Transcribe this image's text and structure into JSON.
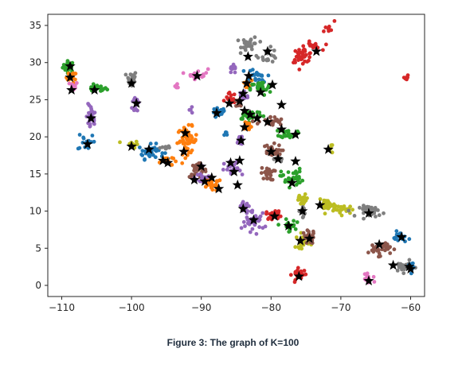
{
  "caption": "Figure 3: The graph of K=100",
  "chart_data": {
    "type": "scatter",
    "title": "",
    "xlabel": "",
    "ylabel": "",
    "xlim": [
      -112,
      -58
    ],
    "ylim": [
      -1.5,
      36.5
    ],
    "xticks": [
      -110,
      -100,
      -90,
      -80,
      -70,
      -60
    ],
    "xtick_labels": [
      "−110",
      "−100",
      "−90",
      "−80",
      "−70",
      "−60"
    ],
    "yticks": [
      0,
      5,
      10,
      15,
      20,
      25,
      30,
      35
    ],
    "ytick_labels": [
      "0",
      "5",
      "10",
      "15",
      "20",
      "25",
      "30",
      "35"
    ],
    "grid": false,
    "legend": "none",
    "colors": {
      "blue": "#1f77b4",
      "orange": "#ff7f0e",
      "green": "#2ca02c",
      "red": "#d62728",
      "purple": "#9467bd",
      "brown": "#8c564b",
      "pink": "#e377c2",
      "gray": "#7f7f7f",
      "olive": "#bcbd22",
      "cyan": "#17becf",
      "centroid": "#000000",
      "axis": "#262626"
    },
    "clusters": [
      {
        "color": "green",
        "x": -109,
        "y": 29.5,
        "sx": 0.7,
        "sy": 0.6,
        "n": 30
      },
      {
        "color": "orange",
        "x": -108.6,
        "y": 28,
        "sx": 0.6,
        "sy": 0.6,
        "n": 20
      },
      {
        "color": "pink",
        "x": -108.3,
        "y": 26.8,
        "sx": 0.5,
        "sy": 0.5,
        "n": 10
      },
      {
        "color": "green",
        "x": -105,
        "y": 26.5,
        "sx": 1.2,
        "sy": 0.4,
        "n": 20
      },
      {
        "color": "purple",
        "x": -105.8,
        "y": 22.5,
        "sx": 0.6,
        "sy": 1.5,
        "n": 25
      },
      {
        "color": "blue",
        "x": -106.5,
        "y": 19.5,
        "sx": 1.0,
        "sy": 1.2,
        "n": 15
      },
      {
        "color": "gray",
        "x": -100,
        "y": 27.8,
        "sx": 0.6,
        "sy": 0.9,
        "n": 25
      },
      {
        "color": "purple",
        "x": -99.3,
        "y": 24.5,
        "sx": 0.5,
        "sy": 1.2,
        "n": 20
      },
      {
        "color": "olive",
        "x": -100,
        "y": 19,
        "sx": 0.8,
        "sy": 0.4,
        "n": 15
      },
      {
        "color": "blue",
        "x": -97.2,
        "y": 18,
        "sx": 1.5,
        "sy": 0.8,
        "n": 35
      },
      {
        "color": "orange",
        "x": -95,
        "y": 16.8,
        "sx": 0.8,
        "sy": 0.6,
        "n": 15
      },
      {
        "color": "pink",
        "x": -93.5,
        "y": 26.8,
        "sx": 0.5,
        "sy": 0.3,
        "n": 6
      },
      {
        "color": "pink",
        "x": -90.5,
        "y": 28.5,
        "sx": 1.2,
        "sy": 0.6,
        "n": 18
      },
      {
        "color": "orange",
        "x": -92,
        "y": 19.5,
        "sx": 1.2,
        "sy": 1.5,
        "n": 55
      },
      {
        "color": "brown",
        "x": -90.5,
        "y": 15.5,
        "sx": 1.0,
        "sy": 0.8,
        "n": 30
      },
      {
        "color": "purple",
        "x": -89.5,
        "y": 14.5,
        "sx": 1.2,
        "sy": 0.8,
        "n": 30
      },
      {
        "color": "orange",
        "x": -88.5,
        "y": 13.5,
        "sx": 1.2,
        "sy": 0.7,
        "n": 25
      },
      {
        "color": "blue",
        "x": -87.5,
        "y": 23.2,
        "sx": 0.8,
        "sy": 0.6,
        "n": 20
      },
      {
        "color": "red",
        "x": -85.8,
        "y": 25.2,
        "sx": 0.6,
        "sy": 0.6,
        "n": 15
      },
      {
        "color": "purple",
        "x": -85.5,
        "y": 29,
        "sx": 0.6,
        "sy": 0.5,
        "n": 12
      },
      {
        "color": "gray",
        "x": -83,
        "y": 32.5,
        "sx": 1.0,
        "sy": 0.8,
        "n": 30
      },
      {
        "color": "gray",
        "x": -80.5,
        "y": 31,
        "sx": 1.2,
        "sy": 0.8,
        "n": 20
      },
      {
        "color": "red",
        "x": -75.5,
        "y": 31,
        "sx": 1.3,
        "sy": 0.8,
        "n": 35
      },
      {
        "color": "red",
        "x": -74,
        "y": 32.2,
        "sx": 1.0,
        "sy": 0.5,
        "n": 15
      },
      {
        "color": "blue",
        "x": -82.5,
        "y": 28,
        "sx": 1.5,
        "sy": 1.0,
        "n": 30
      },
      {
        "color": "orange",
        "x": -83.5,
        "y": 27,
        "sx": 0.6,
        "sy": 0.5,
        "n": 12
      },
      {
        "color": "green",
        "x": -81.5,
        "y": 26.5,
        "sx": 1.2,
        "sy": 0.8,
        "n": 25
      },
      {
        "color": "purple",
        "x": -84,
        "y": 25.5,
        "sx": 0.6,
        "sy": 0.8,
        "n": 20
      },
      {
        "color": "brown",
        "x": -84.5,
        "y": 24.5,
        "sx": 0.5,
        "sy": 0.6,
        "n": 10
      },
      {
        "color": "green",
        "x": -83,
        "y": 23,
        "sx": 1.5,
        "sy": 0.6,
        "n": 35
      },
      {
        "color": "brown",
        "x": -80,
        "y": 22,
        "sx": 1.5,
        "sy": 0.6,
        "n": 25
      },
      {
        "color": "green",
        "x": -77.5,
        "y": 20.5,
        "sx": 1.0,
        "sy": 0.5,
        "n": 25
      },
      {
        "color": "orange",
        "x": -83.5,
        "y": 21.5,
        "sx": 0.6,
        "sy": 0.6,
        "n": 15
      },
      {
        "color": "purple",
        "x": -84.5,
        "y": 19.5,
        "sx": 0.5,
        "sy": 0.8,
        "n": 15
      },
      {
        "color": "brown",
        "x": -80,
        "y": 18,
        "sx": 1.2,
        "sy": 0.8,
        "n": 25
      },
      {
        "color": "brown",
        "x": -80.5,
        "y": 15,
        "sx": 0.8,
        "sy": 0.7,
        "n": 25
      },
      {
        "color": "gray",
        "x": -79,
        "y": 17,
        "sx": 0.5,
        "sy": 0.4,
        "n": 10
      },
      {
        "color": "green",
        "x": -77,
        "y": 14.5,
        "sx": 1.3,
        "sy": 1.0,
        "n": 35
      },
      {
        "color": "olive",
        "x": -75.5,
        "y": 11.5,
        "sx": 0.8,
        "sy": 0.6,
        "n": 20
      },
      {
        "color": "purple",
        "x": -85.5,
        "y": 15.5,
        "sx": 1.0,
        "sy": 1.0,
        "n": 25
      },
      {
        "color": "purple",
        "x": -83.5,
        "y": 10.5,
        "sx": 1.0,
        "sy": 0.8,
        "n": 20
      },
      {
        "color": "purple",
        "x": -82.5,
        "y": 8.5,
        "sx": 1.3,
        "sy": 1.0,
        "n": 30
      },
      {
        "color": "red",
        "x": -79.5,
        "y": 9.5,
        "sx": 1.0,
        "sy": 0.5,
        "n": 20
      },
      {
        "color": "green",
        "x": -77.5,
        "y": 8,
        "sx": 0.8,
        "sy": 0.7,
        "n": 20
      },
      {
        "color": "gray",
        "x": -75.5,
        "y": 10,
        "sx": 0.6,
        "sy": 0.6,
        "n": 15
      },
      {
        "color": "olive",
        "x": -72,
        "y": 10.8,
        "sx": 1.0,
        "sy": 0.6,
        "n": 25
      },
      {
        "color": "olive",
        "x": -69.5,
        "y": 10.2,
        "sx": 1.2,
        "sy": 0.5,
        "n": 25
      },
      {
        "color": "gray",
        "x": -65.5,
        "y": 10,
        "sx": 1.5,
        "sy": 0.6,
        "n": 35
      },
      {
        "color": "olive",
        "x": -75.5,
        "y": 6,
        "sx": 0.8,
        "sy": 0.8,
        "n": 25
      },
      {
        "color": "brown",
        "x": -74.5,
        "y": 6.5,
        "sx": 0.8,
        "sy": 0.8,
        "n": 20
      },
      {
        "color": "red",
        "x": -76,
        "y": 1.5,
        "sx": 0.8,
        "sy": 0.6,
        "n": 30
      },
      {
        "color": "brown",
        "x": -64.5,
        "y": 5,
        "sx": 1.3,
        "sy": 0.8,
        "n": 35
      },
      {
        "color": "blue",
        "x": -61.5,
        "y": 6.5,
        "sx": 0.8,
        "sy": 0.6,
        "n": 20
      },
      {
        "color": "gray",
        "x": -61,
        "y": 2.5,
        "sx": 1.2,
        "sy": 0.6,
        "n": 25
      },
      {
        "color": "blue",
        "x": -60,
        "y": 2.8,
        "sx": 0.4,
        "sy": 0.8,
        "n": 12
      },
      {
        "color": "pink",
        "x": -66,
        "y": 0.8,
        "sx": 0.8,
        "sy": 0.5,
        "n": 12
      },
      {
        "color": "olive",
        "x": -71.5,
        "y": 18.5,
        "sx": 0.4,
        "sy": 0.4,
        "n": 6
      },
      {
        "color": "red",
        "x": -60.5,
        "y": 28,
        "sx": 0.3,
        "sy": 0.4,
        "n": 6
      },
      {
        "color": "red",
        "x": -71.5,
        "y": 34.5,
        "sx": 0.6,
        "sy": 0.8,
        "n": 8
      },
      {
        "color": "gray",
        "x": -95,
        "y": 18.5,
        "sx": 0.6,
        "sy": 0.4,
        "n": 8
      },
      {
        "color": "purple",
        "x": -91.5,
        "y": 23.5,
        "sx": 0.3,
        "sy": 0.3,
        "n": 4
      },
      {
        "color": "blue",
        "x": -86.5,
        "y": 20.5,
        "sx": 0.3,
        "sy": 0.3,
        "n": 4
      }
    ],
    "centroids": [
      [
        -108.8,
        29.5
      ],
      [
        -108.8,
        28
      ],
      [
        -108.6,
        26.3
      ],
      [
        -105.3,
        26.3
      ],
      [
        -105.8,
        22.5
      ],
      [
        -106.3,
        19
      ],
      [
        -100,
        27.2
      ],
      [
        -99.3,
        24.5
      ],
      [
        -100,
        18.7
      ],
      [
        -97.5,
        18.3
      ],
      [
        -95.5,
        16.8
      ],
      [
        -94.8,
        16.5
      ],
      [
        -92.3,
        20.5
      ],
      [
        -92.5,
        18
      ],
      [
        -90.6,
        28.2
      ],
      [
        -90,
        16
      ],
      [
        -91,
        14.2
      ],
      [
        -89.5,
        14
      ],
      [
        -88.5,
        14.5
      ],
      [
        -87.5,
        13
      ],
      [
        -87.8,
        23.2
      ],
      [
        -86,
        24.5
      ],
      [
        -85.3,
        15.3
      ],
      [
        -84.5,
        16.8
      ],
      [
        -84.8,
        13.5
      ],
      [
        -84.3,
        19.5
      ],
      [
        -83.8,
        21.3
      ],
      [
        -83.8,
        23.5
      ],
      [
        -84.5,
        24.8
      ],
      [
        -84,
        25.8
      ],
      [
        -83.5,
        27.2
      ],
      [
        -83.2,
        28.2
      ],
      [
        -83.3,
        30.8
      ],
      [
        -80.5,
        31.5
      ],
      [
        -73.5,
        31.5
      ],
      [
        -79.8,
        27
      ],
      [
        -81.5,
        26
      ],
      [
        -78.5,
        24.3
      ],
      [
        -83,
        23
      ],
      [
        -82,
        22.5
      ],
      [
        -80.5,
        22
      ],
      [
        -78.5,
        21
      ],
      [
        -76.5,
        20.3
      ],
      [
        -80,
        18
      ],
      [
        -79,
        17
      ],
      [
        -77,
        13.8
      ],
      [
        -76.5,
        16.7
      ],
      [
        -84,
        10.3
      ],
      [
        -82.5,
        8.8
      ],
      [
        -79.5,
        9.3
      ],
      [
        -77.5,
        8
      ],
      [
        -75.5,
        10
      ],
      [
        -73,
        10.8
      ],
      [
        -66,
        9.7
      ],
      [
        -75.8,
        6
      ],
      [
        -74.5,
        6.3
      ],
      [
        -76,
        1.2
      ],
      [
        -64.5,
        5.5
      ],
      [
        -61.3,
        6.5
      ],
      [
        -62.5,
        2.7
      ],
      [
        -60.2,
        2.5
      ],
      [
        -60,
        2.2
      ],
      [
        -66,
        0.6
      ],
      [
        -71.8,
        18.3
      ],
      [
        -85.8,
        16.5
      ]
    ]
  }
}
